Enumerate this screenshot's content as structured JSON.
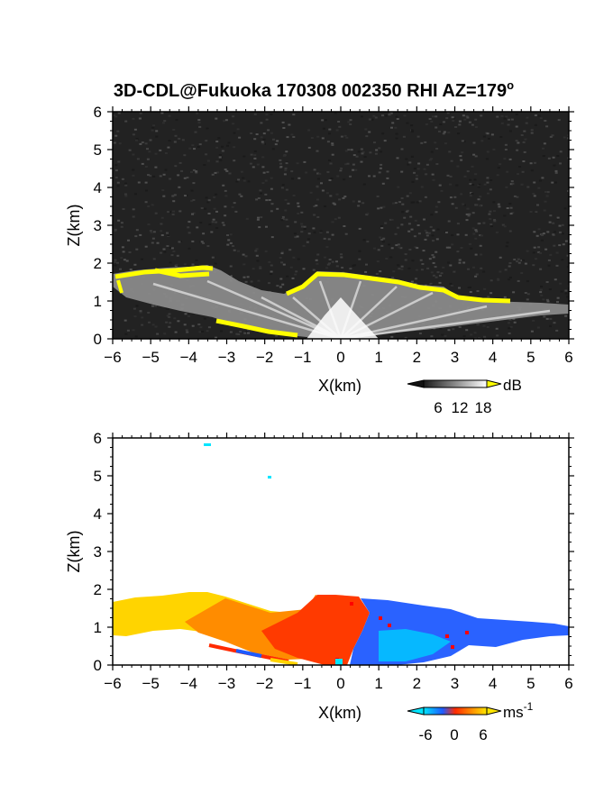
{
  "title": "3D-CDL@Fukuoka 170308 002350 RHI AZ=179",
  "title_superscript": "o",
  "colors": {
    "reflectivity_background": "#222222",
    "reflectivity_saturation": "#ffff00",
    "velocity_background": "#ffffff",
    "velocity_toward": "#1e5aff",
    "velocity_zero": "#ff2a00",
    "velocity_away": "#ffdc00",
    "velocity_low_marker": "#00e5ff"
  },
  "chart_data": [
    {
      "type": "heatmap",
      "panel": "reflectivity",
      "xlabel": "X(km)",
      "ylabel": "Z(km)",
      "xlim": [
        -6,
        6
      ],
      "ylim": [
        0,
        6
      ],
      "xticks": [
        -6,
        -5,
        -4,
        -3,
        -2,
        -1,
        0,
        1,
        2,
        3,
        4,
        5,
        6
      ],
      "yticks": [
        0,
        1,
        2,
        3,
        4,
        5,
        6
      ],
      "grid": false,
      "colorbar": {
        "unit": "dB",
        "ticks": [
          "6",
          "12",
          "18"
        ],
        "range": [
          0,
          21
        ],
        "colormap": "gray-to-white, yellow above max"
      },
      "echo_top_km": [
        {
          "x": -6.0,
          "z": 1.55
        },
        {
          "x": -5.0,
          "z": 1.7
        },
        {
          "x": -4.0,
          "z": 1.78
        },
        {
          "x": -3.5,
          "z": 1.88
        },
        {
          "x": -3.0,
          "z": 1.7
        },
        {
          "x": -2.0,
          "z": 1.3
        },
        {
          "x": -1.0,
          "z": 1.15
        },
        {
          "x": -0.5,
          "z": 1.75
        },
        {
          "x": 0.5,
          "z": 1.7
        },
        {
          "x": 1.5,
          "z": 1.55
        },
        {
          "x": 2.5,
          "z": 1.4
        },
        {
          "x": 3.0,
          "z": 1.2
        },
        {
          "x": 4.0,
          "z": 1.0
        },
        {
          "x": 5.0,
          "z": 0.95
        },
        {
          "x": 6.0,
          "z": 0.9
        }
      ]
    },
    {
      "type": "heatmap",
      "panel": "doppler_velocity",
      "xlabel": "X(km)",
      "ylabel": "Z(km)",
      "xlim": [
        -6,
        6
      ],
      "ylim": [
        0,
        6
      ],
      "xticks": [
        -6,
        -5,
        -4,
        -3,
        -2,
        -1,
        0,
        1,
        2,
        3,
        4,
        5,
        6
      ],
      "yticks": [
        0,
        1,
        2,
        3,
        4,
        5,
        6
      ],
      "grid": false,
      "colorbar": {
        "unit": "ms",
        "unit_exponent": "-1",
        "ticks": [
          "-6",
          "0",
          "6"
        ],
        "range": [
          -8,
          8
        ],
        "colormap": "cyan-blue-red-orange-yellow"
      },
      "velocity_by_x_ms": [
        {
          "x": -6.0,
          "v": 6
        },
        {
          "x": -4.0,
          "v": 5
        },
        {
          "x": -2.5,
          "v": 3
        },
        {
          "x": -1.0,
          "v": 2
        },
        {
          "x": 0.0,
          "v": 1
        },
        {
          "x": 0.7,
          "v": -2
        },
        {
          "x": 1.5,
          "v": -4
        },
        {
          "x": 3.0,
          "v": -5
        },
        {
          "x": 4.5,
          "v": -5
        },
        {
          "x": 6.0,
          "v": -4
        }
      ]
    }
  ]
}
